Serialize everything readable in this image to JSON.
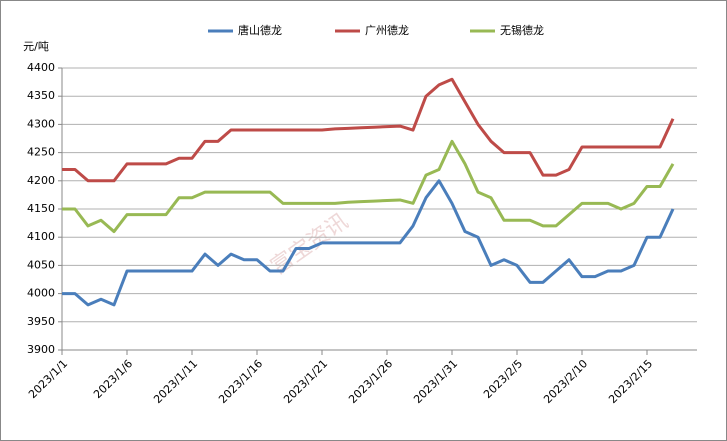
{
  "chart_data": {
    "type": "line",
    "y_label": "元/吨",
    "watermark": "富宝资讯",
    "categories": [
      "2023/1/1",
      null,
      null,
      null,
      null,
      "2023/1/6",
      null,
      null,
      null,
      null,
      "2023/1/11",
      null,
      null,
      null,
      null,
      "2023/1/16",
      null,
      null,
      null,
      null,
      "2023/1/21",
      null,
      null,
      null,
      null,
      "2023/1/26",
      null,
      null,
      null,
      null,
      "2023/1/31",
      null,
      null,
      null,
      null,
      "2023/2/5",
      null,
      null,
      null,
      null,
      "2023/2/10",
      null,
      null,
      null,
      null,
      "2023/2/15",
      null,
      null
    ],
    "series": [
      {
        "name": "唐山德龙",
        "color": "#4a7ebb",
        "values": [
          4000,
          4000,
          3980,
          3990,
          3980,
          4040,
          4040,
          4040,
          4040,
          4040,
          4040,
          4070,
          4050,
          4070,
          4060,
          4060,
          4040,
          4040,
          4080,
          4080,
          4090,
          4090,
          4090,
          4090,
          4090,
          4090,
          4090,
          4120,
          4170,
          4200,
          4160,
          4110,
          4100,
          4050,
          4060,
          4050,
          4020,
          4020,
          4040,
          4060,
          4030,
          4030,
          4040,
          4040,
          4050,
          4100,
          4100,
          4150
        ]
      },
      {
        "name": "广州德龙",
        "color": "#be4b48",
        "values": [
          4220,
          4220,
          4200,
          4200,
          4200,
          4230,
          4230,
          4230,
          4230,
          4240,
          4240,
          4270,
          4270,
          4290,
          4290,
          4290,
          4290,
          4290,
          4290,
          4290,
          4290,
          4292,
          4293,
          4294,
          4295,
          4296,
          4297,
          4290,
          4350,
          4370,
          4380,
          4340,
          4300,
          4270,
          4250,
          4250,
          4250,
          4210,
          4210,
          4220,
          4260,
          4260,
          4260,
          4260,
          4260,
          4260,
          4260,
          4310
        ]
      },
      {
        "name": "无锡德龙",
        "color": "#98b954",
        "values": [
          4150,
          4150,
          4120,
          4130,
          4110,
          4140,
          4140,
          4140,
          4140,
          4170,
          4170,
          4180,
          4180,
          4180,
          4180,
          4180,
          4180,
          4160,
          4160,
          4160,
          4160,
          4160,
          4162,
          4163,
          4164,
          4165,
          4166,
          4160,
          4210,
          4220,
          4270,
          4230,
          4180,
          4170,
          4130,
          4130,
          4130,
          4120,
          4120,
          4140,
          4160,
          4160,
          4160,
          4150,
          4160,
          4190,
          4190,
          4230
        ]
      }
    ],
    "ylim": [
      3900,
      4400
    ],
    "yticks": [
      3900,
      3950,
      4000,
      4050,
      4100,
      4150,
      4200,
      4250,
      4300,
      4350,
      4400
    ],
    "grid": true
  }
}
